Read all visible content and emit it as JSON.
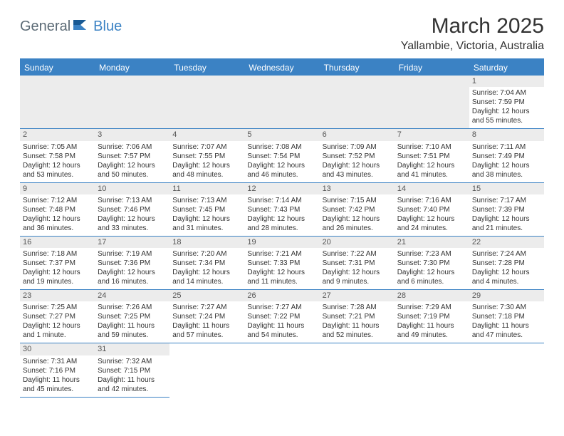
{
  "logo": {
    "part1": "General",
    "part2": "Blue"
  },
  "title": "March 2025",
  "location": "Yallambie, Victoria, Australia",
  "colors": {
    "header_bg": "#3b82c4",
    "header_text": "#ffffff",
    "day_strip": "#ececec",
    "border": "#3b82c4",
    "text": "#333333",
    "logo_gray": "#5c6b76",
    "logo_blue": "#3b82c4"
  },
  "day_headers": [
    "Sunday",
    "Monday",
    "Tuesday",
    "Wednesday",
    "Thursday",
    "Friday",
    "Saturday"
  ],
  "weeks": [
    [
      null,
      null,
      null,
      null,
      null,
      null,
      {
        "d": "1",
        "sr": "7:04 AM",
        "ss": "7:59 PM",
        "dl": "12 hours and 55 minutes."
      }
    ],
    [
      {
        "d": "2",
        "sr": "7:05 AM",
        "ss": "7:58 PM",
        "dl": "12 hours and 53 minutes."
      },
      {
        "d": "3",
        "sr": "7:06 AM",
        "ss": "7:57 PM",
        "dl": "12 hours and 50 minutes."
      },
      {
        "d": "4",
        "sr": "7:07 AM",
        "ss": "7:55 PM",
        "dl": "12 hours and 48 minutes."
      },
      {
        "d": "5",
        "sr": "7:08 AM",
        "ss": "7:54 PM",
        "dl": "12 hours and 46 minutes."
      },
      {
        "d": "6",
        "sr": "7:09 AM",
        "ss": "7:52 PM",
        "dl": "12 hours and 43 minutes."
      },
      {
        "d": "7",
        "sr": "7:10 AM",
        "ss": "7:51 PM",
        "dl": "12 hours and 41 minutes."
      },
      {
        "d": "8",
        "sr": "7:11 AM",
        "ss": "7:49 PM",
        "dl": "12 hours and 38 minutes."
      }
    ],
    [
      {
        "d": "9",
        "sr": "7:12 AM",
        "ss": "7:48 PM",
        "dl": "12 hours and 36 minutes."
      },
      {
        "d": "10",
        "sr": "7:13 AM",
        "ss": "7:46 PM",
        "dl": "12 hours and 33 minutes."
      },
      {
        "d": "11",
        "sr": "7:13 AM",
        "ss": "7:45 PM",
        "dl": "12 hours and 31 minutes."
      },
      {
        "d": "12",
        "sr": "7:14 AM",
        "ss": "7:43 PM",
        "dl": "12 hours and 28 minutes."
      },
      {
        "d": "13",
        "sr": "7:15 AM",
        "ss": "7:42 PM",
        "dl": "12 hours and 26 minutes."
      },
      {
        "d": "14",
        "sr": "7:16 AM",
        "ss": "7:40 PM",
        "dl": "12 hours and 24 minutes."
      },
      {
        "d": "15",
        "sr": "7:17 AM",
        "ss": "7:39 PM",
        "dl": "12 hours and 21 minutes."
      }
    ],
    [
      {
        "d": "16",
        "sr": "7:18 AM",
        "ss": "7:37 PM",
        "dl": "12 hours and 19 minutes."
      },
      {
        "d": "17",
        "sr": "7:19 AM",
        "ss": "7:36 PM",
        "dl": "12 hours and 16 minutes."
      },
      {
        "d": "18",
        "sr": "7:20 AM",
        "ss": "7:34 PM",
        "dl": "12 hours and 14 minutes."
      },
      {
        "d": "19",
        "sr": "7:21 AM",
        "ss": "7:33 PM",
        "dl": "12 hours and 11 minutes."
      },
      {
        "d": "20",
        "sr": "7:22 AM",
        "ss": "7:31 PM",
        "dl": "12 hours and 9 minutes."
      },
      {
        "d": "21",
        "sr": "7:23 AM",
        "ss": "7:30 PM",
        "dl": "12 hours and 6 minutes."
      },
      {
        "d": "22",
        "sr": "7:24 AM",
        "ss": "7:28 PM",
        "dl": "12 hours and 4 minutes."
      }
    ],
    [
      {
        "d": "23",
        "sr": "7:25 AM",
        "ss": "7:27 PM",
        "dl": "12 hours and 1 minute."
      },
      {
        "d": "24",
        "sr": "7:26 AM",
        "ss": "7:25 PM",
        "dl": "11 hours and 59 minutes."
      },
      {
        "d": "25",
        "sr": "7:27 AM",
        "ss": "7:24 PM",
        "dl": "11 hours and 57 minutes."
      },
      {
        "d": "26",
        "sr": "7:27 AM",
        "ss": "7:22 PM",
        "dl": "11 hours and 54 minutes."
      },
      {
        "d": "27",
        "sr": "7:28 AM",
        "ss": "7:21 PM",
        "dl": "11 hours and 52 minutes."
      },
      {
        "d": "28",
        "sr": "7:29 AM",
        "ss": "7:19 PM",
        "dl": "11 hours and 49 minutes."
      },
      {
        "d": "29",
        "sr": "7:30 AM",
        "ss": "7:18 PM",
        "dl": "11 hours and 47 minutes."
      }
    ],
    [
      {
        "d": "30",
        "sr": "7:31 AM",
        "ss": "7:16 PM",
        "dl": "11 hours and 45 minutes."
      },
      {
        "d": "31",
        "sr": "7:32 AM",
        "ss": "7:15 PM",
        "dl": "11 hours and 42 minutes."
      },
      null,
      null,
      null,
      null,
      null
    ]
  ],
  "labels": {
    "sunrise": "Sunrise:",
    "sunset": "Sunset:",
    "daylight": "Daylight:"
  }
}
